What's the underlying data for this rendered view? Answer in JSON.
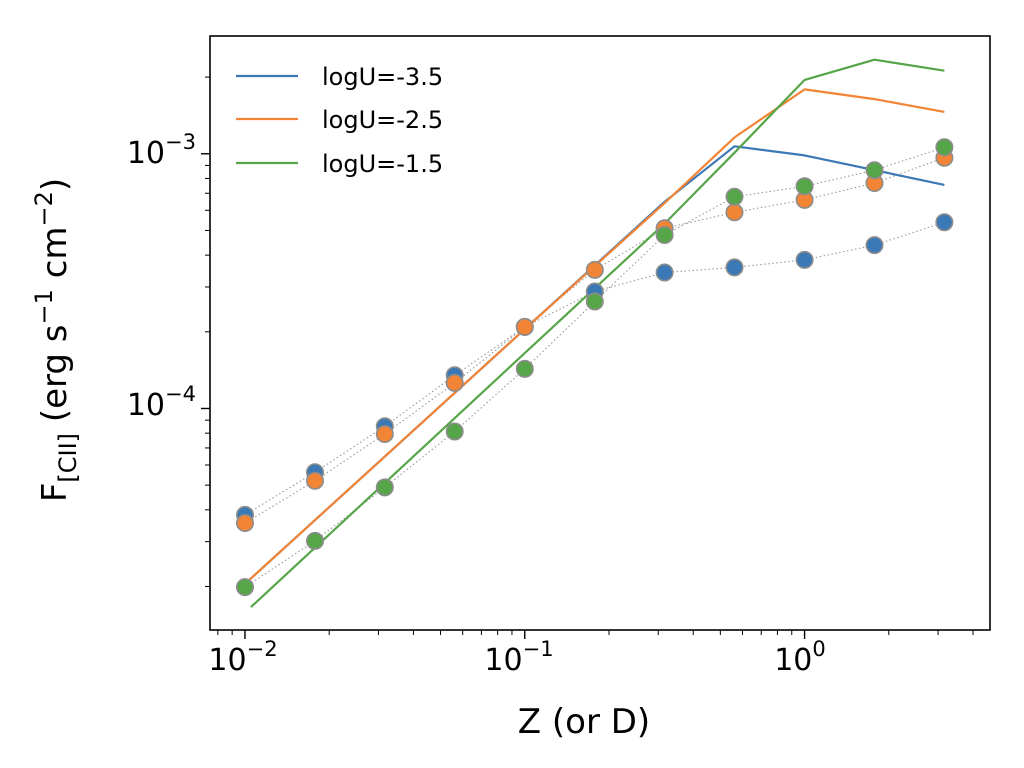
{
  "chart_data": {
    "type": "line",
    "xscale": "log",
    "yscale": "log",
    "xlim": [
      0.0075,
      4.6
    ],
    "ylim": [
      1.35e-05,
      0.0029
    ],
    "xlabel": "Z (or D)",
    "ylabel": {
      "base": "F",
      "sub": "[CII]",
      "units_open": " (erg s",
      "exp1": "−1",
      "units_mid": " cm",
      "exp2": "−2",
      "units_close": ")"
    },
    "x_ticks": [
      {
        "value": 0.01,
        "base": "10",
        "exp": "−2"
      },
      {
        "value": 0.1,
        "base": "10",
        "exp": "−1"
      },
      {
        "value": 1,
        "base": "10",
        "exp": "0"
      }
    ],
    "y_ticks": [
      {
        "value": 0.0001,
        "base": "10",
        "exp": "−4"
      },
      {
        "value": 0.001,
        "base": "10",
        "exp": "−3"
      }
    ],
    "legend_position": "top-left",
    "colors": {
      "blue": "#3b78b6",
      "orange": "#f28435",
      "green": "#56a548",
      "dots": "#999999",
      "marker_edge": "#8c8c8c"
    },
    "series": [
      {
        "name": "logU=-3.5",
        "color": "#3b78b6",
        "x": [
          0.01,
          0.1,
          0.316,
          0.562,
          1.0,
          3.162
        ],
        "y": [
          2.05e-05,
          0.000205,
          0.000648,
          0.00107,
          0.000985,
          0.000755
        ]
      },
      {
        "name": "logU=-2.5",
        "color": "#f28435",
        "x": [
          0.01,
          0.1,
          0.316,
          0.562,
          1.0,
          1.778,
          3.162
        ],
        "y": [
          2.05e-05,
          0.000205,
          0.00064,
          0.00116,
          0.00179,
          0.00164,
          0.00146
        ]
      },
      {
        "name": "logU=-1.5",
        "color": "#56a548",
        "x": [
          0.0105,
          0.1,
          0.316,
          0.562,
          1.0,
          1.778,
          3.162
        ],
        "y": [
          1.66e-05,
          0.000165,
          0.000532,
          0.00101,
          0.00195,
          0.00234,
          0.00212
        ]
      }
    ],
    "points": [
      {
        "name": "logU=-3.5 points",
        "color": "#3b78b6",
        "x": [
          0.01,
          0.0178,
          0.0316,
          0.0562,
          0.1,
          0.178,
          0.316,
          0.562,
          1.0,
          1.778,
          3.162
        ],
        "y": [
          3.82e-05,
          5.62e-05,
          8.51e-05,
          0.000135,
          0.000209,
          0.000288,
          0.000342,
          0.000358,
          0.000383,
          0.000438,
          0.000538
        ]
      },
      {
        "name": "logU=-2.5 points",
        "color": "#f28435",
        "x": [
          0.01,
          0.0178,
          0.0316,
          0.0562,
          0.1,
          0.178,
          0.316,
          0.562,
          1.0,
          1.778,
          3.162
        ],
        "y": [
          3.55e-05,
          5.2e-05,
          7.94e-05,
          0.000126,
          0.000209,
          0.00035,
          0.00051,
          0.000589,
          0.000659,
          0.000768,
          0.000965
        ]
      },
      {
        "name": "logU=-1.5 points",
        "color": "#56a548",
        "x": [
          0.01,
          0.0178,
          0.0316,
          0.0562,
          0.1,
          0.178,
          0.316,
          0.562,
          1.0,
          1.778,
          3.162
        ],
        "y": [
          1.99e-05,
          3.02e-05,
          4.9e-05,
          8.12e-05,
          0.000143,
          0.000263,
          0.00048,
          0.000678,
          0.000745,
          0.000862,
          0.00106
        ]
      }
    ]
  }
}
